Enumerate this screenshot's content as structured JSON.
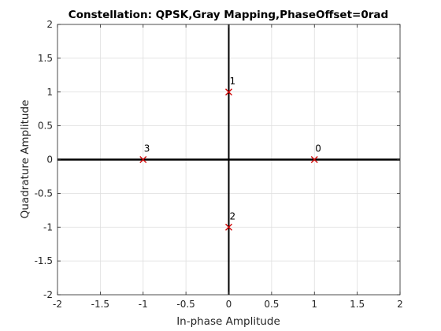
{
  "chart_data": {
    "type": "scatter",
    "title": "Constellation: QPSK,Gray Mapping,PhaseOffset=0rad",
    "xlabel": "In-phase Amplitude",
    "ylabel": "Quadrature Amplitude",
    "xlim": [
      -2,
      2
    ],
    "ylim": [
      -2,
      2
    ],
    "xticks": [
      "-2",
      "-1.5",
      "-1",
      "-0.5",
      "0",
      "0.5",
      "1",
      "1.5",
      "2"
    ],
    "yticks": [
      "-2",
      "-1.5",
      "-1",
      "-0.5",
      "0",
      "0.5",
      "1",
      "1.5",
      "2"
    ],
    "grid": true,
    "marker": "x",
    "marker_color": "#cc0000",
    "points": [
      {
        "x": 1,
        "y": 0,
        "label": "0"
      },
      {
        "x": 0,
        "y": 1,
        "label": "1"
      },
      {
        "x": 0,
        "y": -1,
        "label": "2"
      },
      {
        "x": -1,
        "y": 0,
        "label": "3"
      }
    ]
  }
}
